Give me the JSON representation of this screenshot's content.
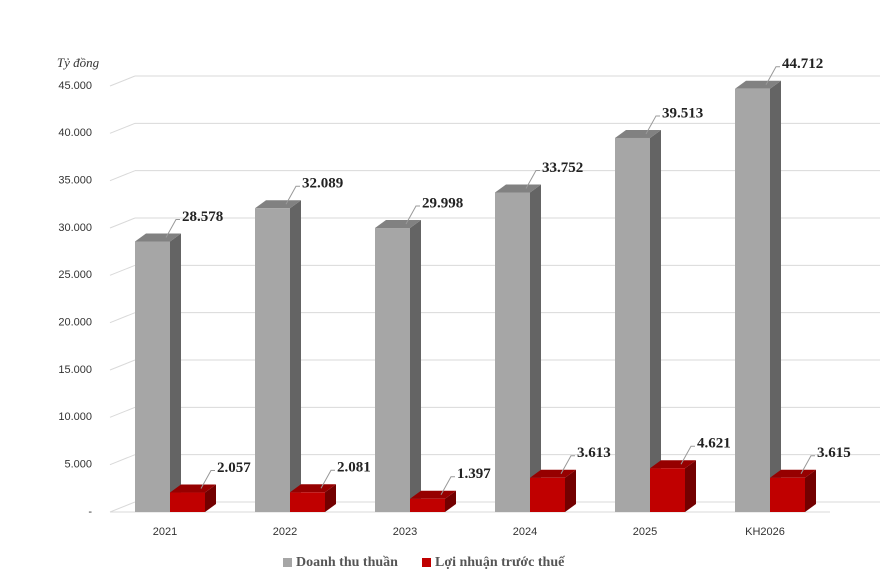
{
  "chart_data": {
    "type": "bar3d",
    "y_axis_label": "Tỷ đồng",
    "categories": [
      "2021",
      "2022",
      "2023",
      "2024",
      "2025",
      "KH2026"
    ],
    "series": [
      {
        "name": "Doanh thu thuần",
        "color": "#a6a6a6",
        "values": [
          28578,
          32089,
          29998,
          33752,
          39513,
          44712
        ],
        "value_labels": [
          "28.578",
          "32.089",
          "29.998",
          "33.752",
          "39.513",
          "44.712"
        ]
      },
      {
        "name": "Lợi nhuận trước thuế",
        "color": "#c00000",
        "values": [
          2057,
          2081,
          1397,
          3613,
          4621,
          3615
        ],
        "value_labels": [
          "2.057",
          "2.081",
          "1.397",
          "3.613",
          "4.621",
          "3.615"
        ]
      }
    ],
    "ylim": [
      0,
      45000
    ],
    "yticks": [
      {
        "value": 0,
        "label": "-"
      },
      {
        "value": 5000,
        "label": "5.000"
      },
      {
        "value": 10000,
        "label": "10.000"
      },
      {
        "value": 15000,
        "label": "15.000"
      },
      {
        "value": 20000,
        "label": "20.000"
      },
      {
        "value": 25000,
        "label": "25.000"
      },
      {
        "value": 30000,
        "label": "30.000"
      },
      {
        "value": 35000,
        "label": "35.000"
      },
      {
        "value": 40000,
        "label": "40.000"
      },
      {
        "value": 45000,
        "label": "45.000"
      }
    ],
    "grid": true,
    "legend_position": "bottom"
  }
}
